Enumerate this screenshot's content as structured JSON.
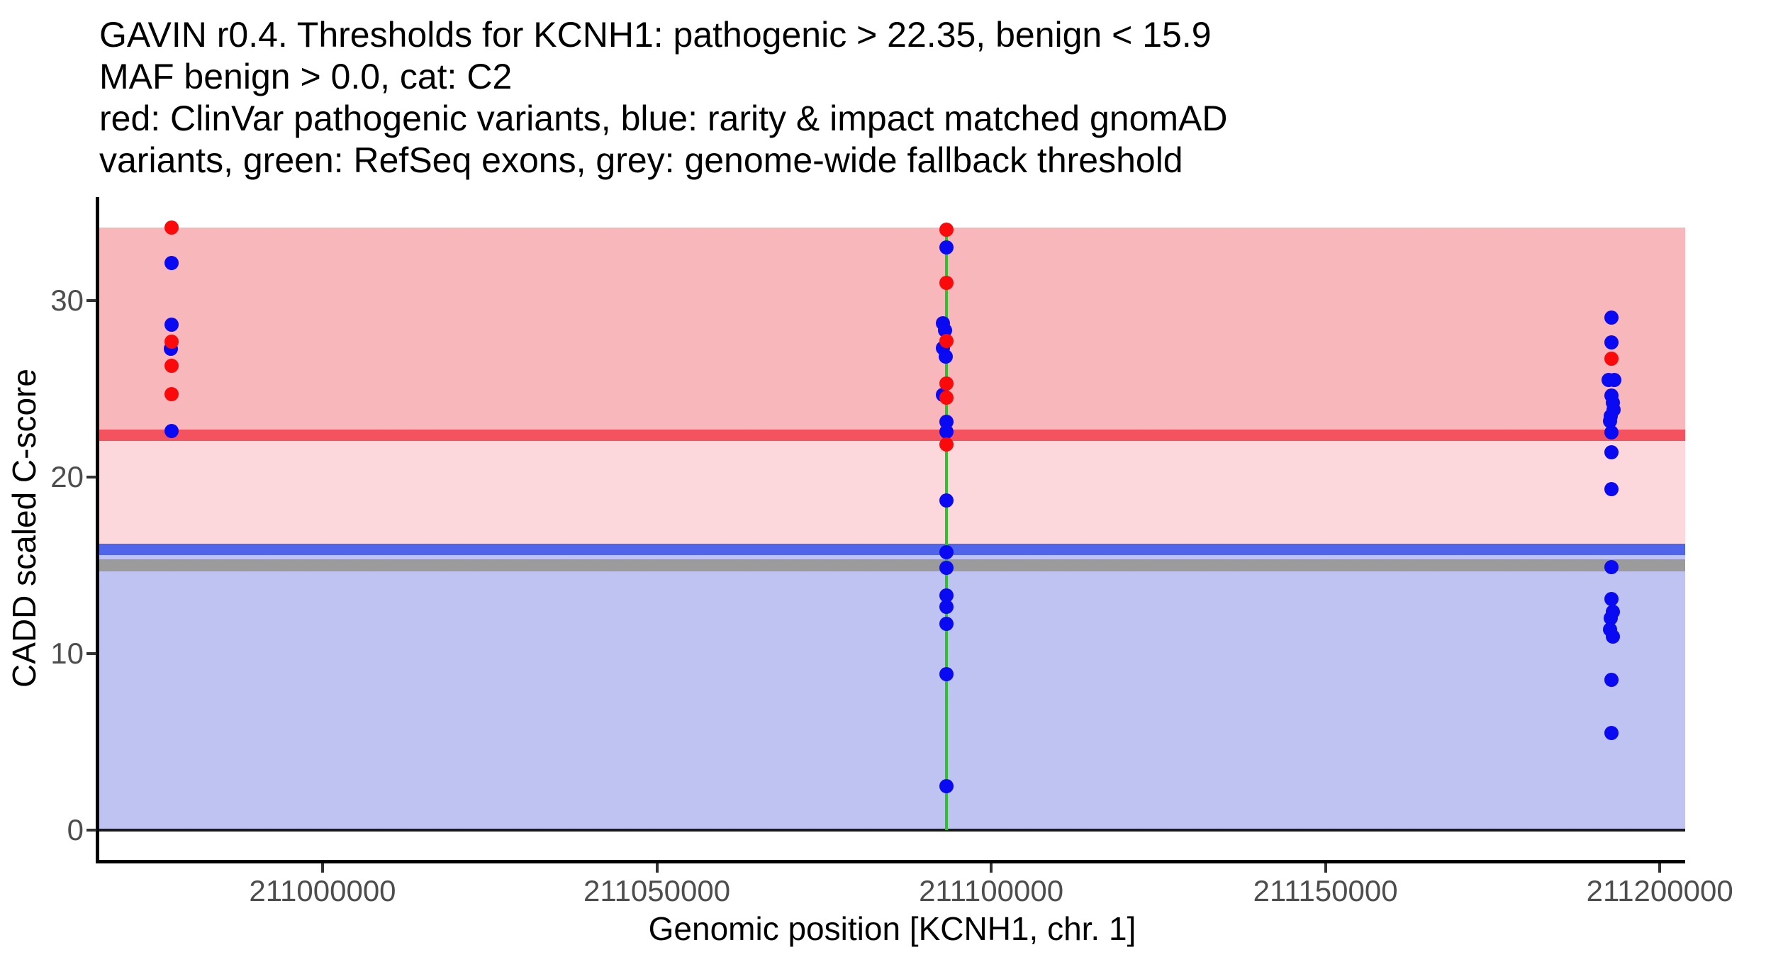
{
  "chart_data": {
    "type": "scatter",
    "title_lines": [
      "GAVIN r0.4. Thresholds for KCNH1: pathogenic > 22.35, benign < 15.9",
      "MAF benign > 0.0, cat: C2",
      "red: ClinVar pathogenic variants, blue: rarity & impact matched gnomAD",
      "variants, green: RefSeq exons, grey: genome-wide fallback threshold"
    ],
    "xlabel": "Genomic position [KCNH1, chr. 1]",
    "ylabel": "CADD scaled C-score",
    "gene": "KCNH1",
    "chromosome": "1",
    "thresholds": {
      "pathogenic": 22.35,
      "benign": 15.9,
      "maf_benign": 0.0,
      "category": "C2",
      "genome_wide_fallback": 15.0
    },
    "x_domain": [
      210966600,
      211203800
    ],
    "y_domain": [
      -1.68,
      35.84
    ],
    "x_ticks": [
      {
        "value": 211000000,
        "label": "211000000"
      },
      {
        "value": 211050000,
        "label": "211050000"
      },
      {
        "value": 211100000,
        "label": "211100000"
      },
      {
        "value": 211150000,
        "label": "211150000"
      },
      {
        "value": 211200000,
        "label": "211200000"
      }
    ],
    "y_ticks": [
      {
        "value": 0,
        "label": "0"
      },
      {
        "value": 10,
        "label": "10"
      },
      {
        "value": 20,
        "label": "20"
      },
      {
        "value": 30,
        "label": "30"
      }
    ],
    "bands": [
      {
        "name": "pathogenic-region-band",
        "from": 22.35,
        "to": 34.1,
        "color": "#F8B7BB"
      },
      {
        "name": "intermediate-region-band",
        "from": 15.9,
        "to": 22.35,
        "color": "#FCD8DC"
      },
      {
        "name": "benign-region-band",
        "from": 0,
        "to": 15.9,
        "color": "#BEC3F2"
      }
    ],
    "hlines": [
      {
        "name": "pathogenic-threshold-line",
        "y": 22.35,
        "thickness": 16,
        "color": "#F4525E"
      },
      {
        "name": "benign-threshold-line",
        "y": 15.9,
        "thickness": 16,
        "color": "#5065E9"
      },
      {
        "name": "fallback-threshold-line",
        "y": 15.0,
        "thickness": 17,
        "color": "#9B9B9B"
      },
      {
        "name": "zero-baseline",
        "y": 0,
        "thickness": 4,
        "color": "#1A1A1A"
      }
    ],
    "exon_lines": [
      {
        "name": "refseq-exon-line",
        "x": 211093300,
        "from": 0,
        "to": 34.1,
        "width": 4,
        "color": "#2DC22D"
      }
    ],
    "series": [
      {
        "name": "rarity & impact matched gnomAD variants",
        "color": "#0909F2",
        "points": [
          {
            "x": 210977400,
            "y": 32.1
          },
          {
            "x": 210977400,
            "y": 28.6
          },
          {
            "x": 210977400,
            "y": 27.25,
            "dx": -1
          },
          {
            "x": 210977400,
            "y": 22.6
          },
          {
            "x": 211093300,
            "y": 33.0
          },
          {
            "x": 211093300,
            "y": 28.7,
            "dx": -5
          },
          {
            "x": 211093300,
            "y": 28.3,
            "dx": -2
          },
          {
            "x": 211093300,
            "y": 27.3,
            "dx": -5
          },
          {
            "x": 211093300,
            "y": 26.8,
            "dx": -1
          },
          {
            "x": 211093300,
            "y": 24.65,
            "dx": -5
          },
          {
            "x": 211093300,
            "y": 23.1
          },
          {
            "x": 211093300,
            "y": 22.55
          },
          {
            "x": 211093300,
            "y": 18.65
          },
          {
            "x": 211093300,
            "y": 15.75
          },
          {
            "x": 211093300,
            "y": 14.85
          },
          {
            "x": 211093300,
            "y": 13.3
          },
          {
            "x": 211093300,
            "y": 12.65
          },
          {
            "x": 211093300,
            "y": 11.7
          },
          {
            "x": 211093300,
            "y": 8.85
          },
          {
            "x": 211093300,
            "y": 2.5
          },
          {
            "x": 211192800,
            "y": 29.0
          },
          {
            "x": 211192800,
            "y": 27.6
          },
          {
            "x": 211192800,
            "y": 25.5,
            "dx": -4
          },
          {
            "x": 211192800,
            "y": 25.5,
            "dx": 4
          },
          {
            "x": 211192800,
            "y": 24.6
          },
          {
            "x": 211192800,
            "y": 24.2,
            "dx": 2
          },
          {
            "x": 211192800,
            "y": 23.8,
            "dx": 3
          },
          {
            "x": 211192800,
            "y": 23.45,
            "dx": -1
          },
          {
            "x": 211192800,
            "y": 23.15,
            "dx": -2
          },
          {
            "x": 211192800,
            "y": 22.5
          },
          {
            "x": 211192800,
            "y": 21.4
          },
          {
            "x": 211192800,
            "y": 19.3
          },
          {
            "x": 211192800,
            "y": 14.9
          },
          {
            "x": 211192800,
            "y": 13.1
          },
          {
            "x": 211192800,
            "y": 12.35,
            "dx": 2
          },
          {
            "x": 211192800,
            "y": 12.0,
            "dx": -1
          },
          {
            "x": 211192800,
            "y": 11.35,
            "dx": -2
          },
          {
            "x": 211192800,
            "y": 10.95,
            "dx": 2
          },
          {
            "x": 211192800,
            "y": 8.5
          },
          {
            "x": 211192800,
            "y": 5.5
          }
        ]
      },
      {
        "name": "ClinVar pathogenic variants",
        "color": "#FA0A0A",
        "points": [
          {
            "x": 210977400,
            "y": 34.1
          },
          {
            "x": 210977400,
            "y": 27.65
          },
          {
            "x": 210977400,
            "y": 26.3
          },
          {
            "x": 210977400,
            "y": 24.7
          },
          {
            "x": 211093300,
            "y": 34.0
          },
          {
            "x": 211093300,
            "y": 31.0
          },
          {
            "x": 211093300,
            "y": 27.7
          },
          {
            "x": 211093300,
            "y": 25.3
          },
          {
            "x": 211093300,
            "y": 24.5
          },
          {
            "x": 211093300,
            "y": 21.85
          },
          {
            "x": 211192800,
            "y": 26.7
          }
        ]
      }
    ],
    "legend_position": "none",
    "grid": false
  }
}
